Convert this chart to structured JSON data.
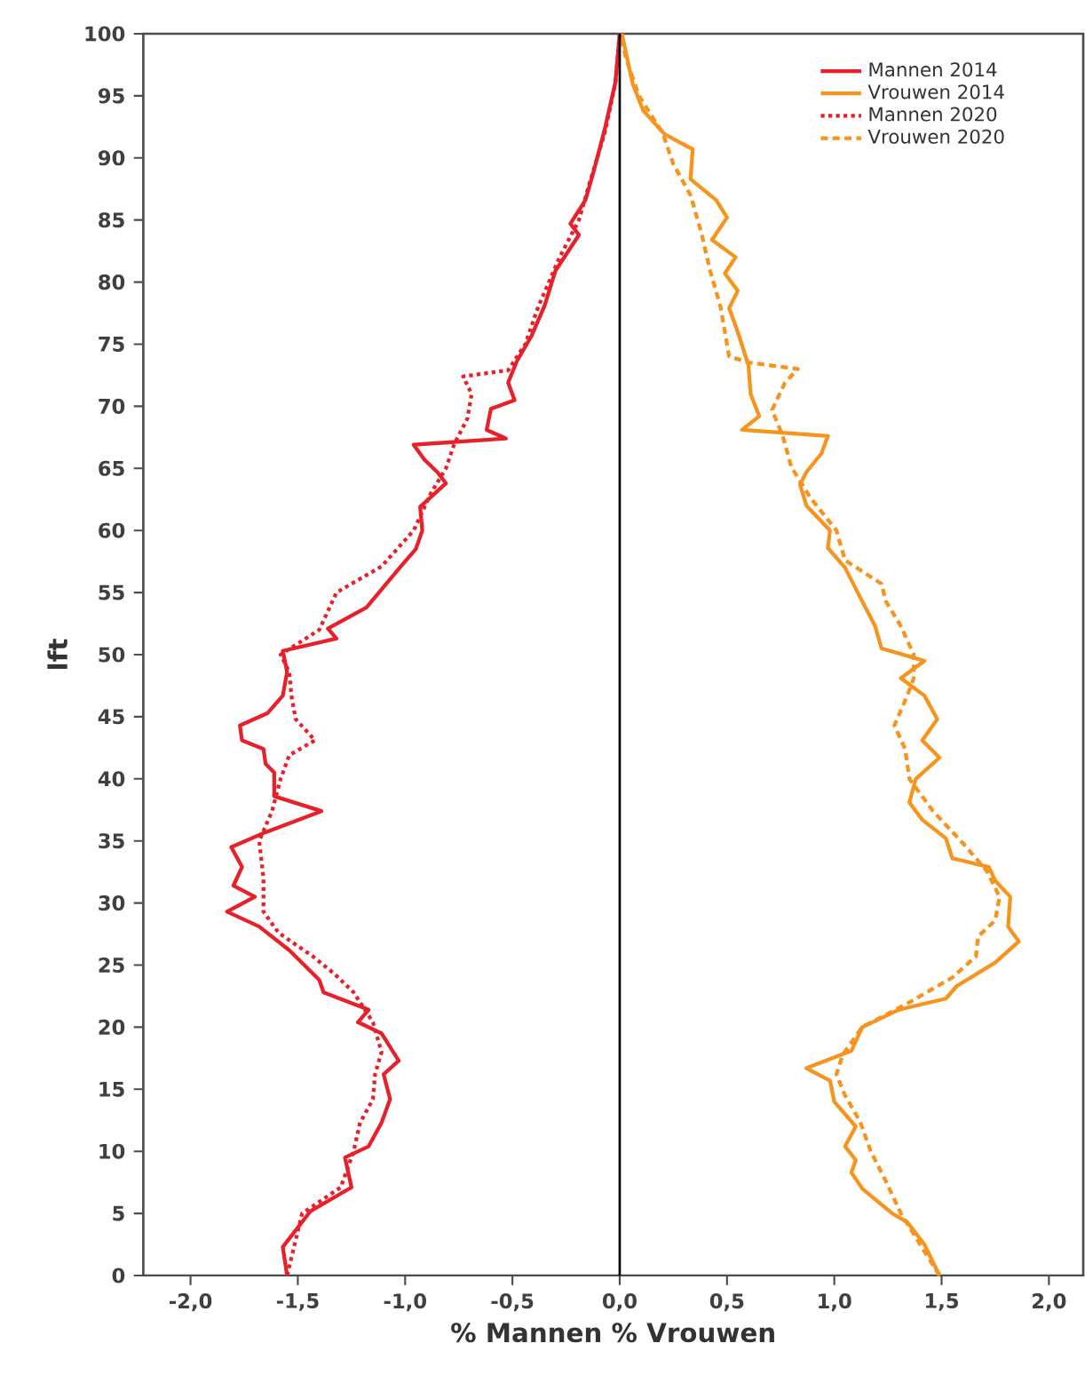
{
  "chart_data": {
    "type": "line",
    "orientation": "horizontal",
    "xlabel": "% Mannen % Vrouwen",
    "ylabel": "lft",
    "xlim": [
      -2.22,
      2.16
    ],
    "xticks": [
      {
        "value": -2,
        "label": "-2,0"
      },
      {
        "value": -1.5,
        "label": "-1,5"
      },
      {
        "value": -1,
        "label": "-1,0"
      },
      {
        "value": -0.5,
        "label": "-0,5"
      },
      {
        "value": 0,
        "label": "0,0"
      },
      {
        "value": 0.5,
        "label": "0,5"
      },
      {
        "value": 1,
        "label": "1,0"
      },
      {
        "value": 1.5,
        "label": "1,5"
      },
      {
        "value": 2,
        "label": "2,0"
      }
    ],
    "ylim": [
      0,
      100
    ],
    "yticks": [
      0,
      5,
      10,
      15,
      20,
      25,
      30,
      35,
      40,
      45,
      50,
      55,
      60,
      65,
      70,
      75,
      80,
      85,
      90,
      95,
      100
    ],
    "legend": "top right",
    "ref_lines": [
      {
        "axis": "x",
        "value": 0,
        "color": "#000000"
      }
    ],
    "series": [
      {
        "name": "Mannen 2014",
        "color": "#e8202a",
        "line_style": "solid",
        "x": [
          0,
          2.3,
          5.2,
          7.1,
          9.5,
          10.4,
          12.3,
          14.2,
          16.2,
          17.3,
          19.5,
          20.4,
          21.4,
          22.8,
          23.8,
          26.2,
          28.1,
          29.3,
          30.5,
          31.4,
          32.9,
          34.5,
          35.7,
          37.4,
          38.6,
          40.5,
          41.2,
          42.4,
          43.1,
          44.3,
          45.3,
          46.7,
          48.6,
          50.3,
          51.3,
          52.1,
          53.8,
          57.1,
          58.5,
          60,
          61.9,
          63.8,
          64.7,
          65.7,
          66.9,
          67.4,
          68.1,
          69.8,
          70.5,
          71.9,
          73.6,
          75.7,
          78.1,
          80.9,
          83.8,
          84.7,
          86.6,
          89,
          92.3,
          96.1,
          100
        ],
        "values": [
          -1.55,
          -1.57,
          -1.44,
          -1.25,
          -1.28,
          -1.17,
          -1.11,
          -1.07,
          -1.1,
          -1.03,
          -1.11,
          -1.22,
          -1.17,
          -1.38,
          -1.4,
          -1.54,
          -1.68,
          -1.83,
          -1.7,
          -1.8,
          -1.76,
          -1.81,
          -1.65,
          -1.39,
          -1.61,
          -1.61,
          -1.65,
          -1.66,
          -1.76,
          -1.77,
          -1.64,
          -1.57,
          -1.55,
          -1.57,
          -1.32,
          -1.36,
          -1.18,
          -1.02,
          -0.95,
          -0.92,
          -0.93,
          -0.81,
          -0.85,
          -0.91,
          -0.96,
          -0.53,
          -0.62,
          -0.6,
          -0.49,
          -0.52,
          -0.48,
          -0.41,
          -0.35,
          -0.3,
          -0.19,
          -0.23,
          -0.16,
          -0.12,
          -0.07,
          -0.02,
          0
        ]
      },
      {
        "name": "Vrouwen 2014",
        "color": "#f7941d",
        "line_style": "solid",
        "x": [
          0,
          2.5,
          4.3,
          5,
          7,
          8.3,
          9.3,
          10.4,
          12,
          14,
          15.7,
          16.7,
          18.1,
          20,
          21.4,
          22.3,
          23.3,
          25.2,
          26.9,
          28.1,
          30.5,
          31.8,
          32.9,
          33.6,
          35.2,
          36.7,
          38.1,
          40,
          41.7,
          43.1,
          44.8,
          46.7,
          48.1,
          49.5,
          50.5,
          52.3,
          54.3,
          57,
          58.6,
          60,
          62,
          63.7,
          64.7,
          66.2,
          67.6,
          68.1,
          69.2,
          71,
          73.3,
          76,
          77.9,
          79.3,
          80.7,
          82,
          83.4,
          85.2,
          86.6,
          88.3,
          90.7,
          91.9,
          93.8,
          96,
          98.4,
          100
        ],
        "values": [
          1.49,
          1.42,
          1.34,
          1.27,
          1.13,
          1.08,
          1.1,
          1.05,
          1.1,
          1.0,
          0.98,
          0.87,
          1.08,
          1.13,
          1.3,
          1.52,
          1.57,
          1.75,
          1.86,
          1.81,
          1.82,
          1.75,
          1.72,
          1.55,
          1.52,
          1.41,
          1.35,
          1.38,
          1.49,
          1.41,
          1.48,
          1.42,
          1.31,
          1.42,
          1.22,
          1.19,
          1.13,
          1.05,
          0.97,
          0.98,
          0.87,
          0.84,
          0.87,
          0.94,
          0.97,
          0.57,
          0.65,
          0.61,
          0.6,
          0.55,
          0.51,
          0.55,
          0.49,
          0.54,
          0.43,
          0.5,
          0.45,
          0.33,
          0.34,
          0.21,
          0.11,
          0.06,
          0.03,
          0.01
        ]
      },
      {
        "name": "Mannen 2020",
        "color": "#e8202a",
        "line_style": "dotted",
        "x": [
          0,
          5,
          7.1,
          10,
          12.3,
          14.2,
          16.2,
          18,
          20.4,
          22.8,
          24.3,
          25.7,
          27.6,
          29.3,
          32,
          35,
          37.4,
          40,
          41.9,
          43.1,
          44.8,
          46.7,
          48.6,
          50,
          52,
          55,
          57.1,
          60,
          63,
          65,
          67,
          69,
          71,
          72.4,
          72.9,
          75,
          78,
          82,
          85,
          88,
          92,
          96,
          100
        ],
        "values": [
          -1.55,
          -1.48,
          -1.3,
          -1.24,
          -1.21,
          -1.15,
          -1.14,
          -1.11,
          -1.15,
          -1.24,
          -1.33,
          -1.43,
          -1.59,
          -1.66,
          -1.66,
          -1.68,
          -1.62,
          -1.58,
          -1.54,
          -1.42,
          -1.51,
          -1.53,
          -1.54,
          -1.58,
          -1.4,
          -1.32,
          -1.11,
          -0.96,
          -0.88,
          -0.81,
          -0.77,
          -0.71,
          -0.69,
          -0.73,
          -0.52,
          -0.44,
          -0.38,
          -0.28,
          -0.19,
          -0.14,
          -0.07,
          -0.02,
          0
        ]
      },
      {
        "name": "Vrouwen 2020",
        "color": "#f7941d",
        "line_style": "dashed",
        "x": [
          0,
          5,
          7.6,
          10,
          12.4,
          14.5,
          16.2,
          17.8,
          20,
          22,
          24,
          25.7,
          27.3,
          28.6,
          30.5,
          32.6,
          34.8,
          37.4,
          40,
          42.4,
          44.3,
          46.7,
          48.1,
          50,
          52.3,
          54.3,
          55.7,
          57.6,
          60,
          62.6,
          65.1,
          67.6,
          69.7,
          71.9,
          73,
          73.5,
          74,
          76,
          78,
          81,
          84,
          87,
          89.5,
          92,
          95,
          98,
          100
        ],
        "values": [
          1.49,
          1.31,
          1.24,
          1.17,
          1.12,
          1.05,
          1.01,
          1.04,
          1.13,
          1.35,
          1.55,
          1.66,
          1.67,
          1.75,
          1.77,
          1.71,
          1.6,
          1.46,
          1.35,
          1.33,
          1.28,
          1.34,
          1.37,
          1.37,
          1.31,
          1.24,
          1.22,
          1.05,
          1.01,
          0.89,
          0.8,
          0.76,
          0.71,
          0.77,
          0.83,
          0.61,
          0.51,
          0.49,
          0.47,
          0.42,
          0.38,
          0.33,
          0.25,
          0.2,
          0.09,
          0.03,
          0
        ]
      }
    ]
  }
}
